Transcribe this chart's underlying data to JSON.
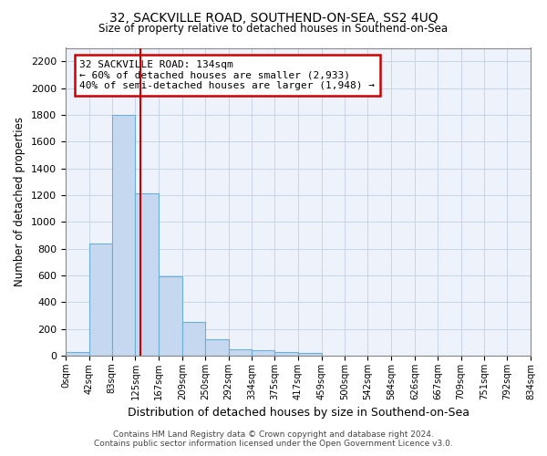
{
  "title": "32, SACKVILLE ROAD, SOUTHEND-ON-SEA, SS2 4UQ",
  "subtitle": "Size of property relative to detached houses in Southend-on-Sea",
  "xlabel": "Distribution of detached houses by size in Southend-on-Sea",
  "ylabel": "Number of detached properties",
  "footer_line1": "Contains HM Land Registry data © Crown copyright and database right 2024.",
  "footer_line2": "Contains public sector information licensed under the Open Government Licence v3.0.",
  "annotation_title": "32 SACKVILLE ROAD: 134sqm",
  "annotation_line1": "← 60% of detached houses are smaller (2,933)",
  "annotation_line2": "40% of semi-detached houses are larger (1,948) →",
  "property_sqm": 134,
  "bar_color": "#c5d8f0",
  "bar_edge_color": "#6baed6",
  "vline_color": "#cc0000",
  "annotation_box_color": "#cc0000",
  "grid_color": "#c8d4e8",
  "background_color": "#eef2fa",
  "bin_edges": [
    0,
    42,
    83,
    125,
    167,
    209,
    250,
    292,
    334,
    375,
    417,
    459,
    500,
    542,
    584,
    626,
    667,
    709,
    751,
    792,
    834
  ],
  "bin_labels": [
    "0sqm",
    "42sqm",
    "83sqm",
    "125sqm",
    "167sqm",
    "209sqm",
    "250sqm",
    "292sqm",
    "334sqm",
    "375sqm",
    "417sqm",
    "459sqm",
    "500sqm",
    "542sqm",
    "584sqm",
    "626sqm",
    "667sqm",
    "709sqm",
    "751sqm",
    "792sqm",
    "834sqm"
  ],
  "bar_heights": [
    30,
    840,
    1800,
    1210,
    590,
    255,
    120,
    45,
    42,
    30,
    20,
    0,
    0,
    0,
    0,
    0,
    0,
    0,
    0,
    0
  ],
  "ylim": [
    0,
    2300
  ],
  "yticks": [
    0,
    200,
    400,
    600,
    800,
    1000,
    1200,
    1400,
    1600,
    1800,
    2000,
    2200
  ]
}
